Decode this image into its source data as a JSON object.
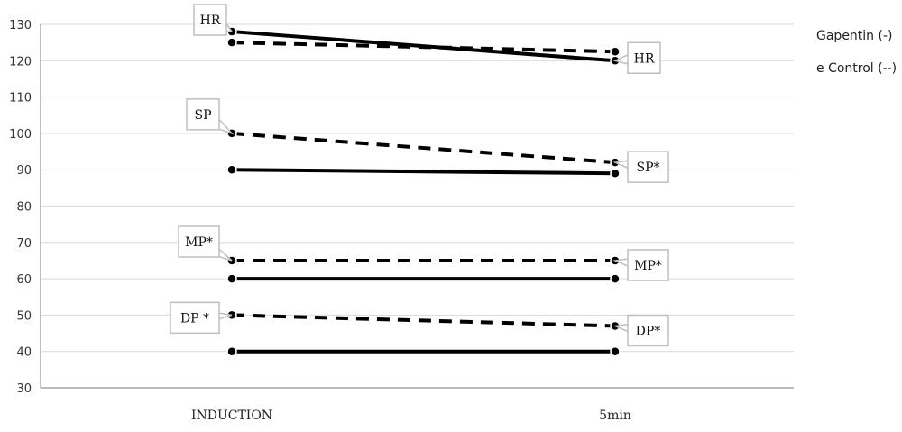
{
  "chart_data": {
    "type": "line",
    "categories": [
      "INDUCTION",
      "5min"
    ],
    "ylim": [
      30,
      130
    ],
    "yticks": [
      30,
      40,
      50,
      60,
      70,
      80,
      90,
      100,
      110,
      120,
      130
    ],
    "grid": true,
    "legend": {
      "placement": "right",
      "entries": [
        {
          "text": "Gapentin (-)",
          "style": "solid"
        },
        {
          "text": "e Control (--)",
          "style": "dashed"
        }
      ]
    },
    "series": [
      {
        "name": "HR",
        "style": "solid",
        "values": [
          128,
          120
        ]
      },
      {
        "name": "HR",
        "style": "dashed",
        "values": [
          125,
          122.5
        ]
      },
      {
        "name": "SP",
        "style": "dashed",
        "values": [
          100,
          92
        ]
      },
      {
        "name": "SP",
        "style": "solid",
        "values": [
          90,
          89
        ]
      },
      {
        "name": "MP",
        "style": "dashed",
        "values": [
          65,
          65
        ]
      },
      {
        "name": "MP",
        "style": "solid",
        "values": [
          60,
          60
        ]
      },
      {
        "name": "DP",
        "style": "dashed",
        "values": [
          50,
          47
        ]
      },
      {
        "name": "DP",
        "style": "solid",
        "values": [
          40,
          40
        ]
      }
    ],
    "annotations": [
      {
        "text": "HR",
        "category": "INDUCTION",
        "value": 128
      },
      {
        "text": "HR",
        "category": "5min",
        "value": 120
      },
      {
        "text": "SP",
        "category": "INDUCTION",
        "value": 100
      },
      {
        "text": "SP*",
        "category": "5min",
        "value": 92
      },
      {
        "text": "MP*",
        "category": "INDUCTION",
        "value": 65
      },
      {
        "text": "MP*",
        "category": "5min",
        "value": 65
      },
      {
        "text": "DP *",
        "category": "INDUCTION",
        "value": 50
      },
      {
        "text": "DP*",
        "category": "5min",
        "value": 47
      }
    ]
  }
}
